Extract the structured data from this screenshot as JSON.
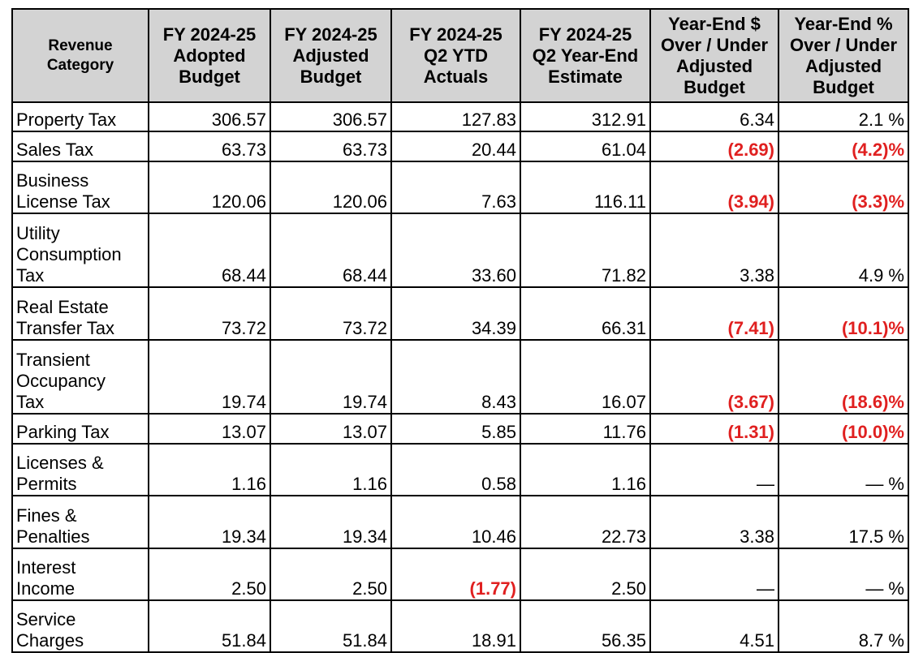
{
  "table": {
    "headers": [
      "Revenue\nCategory",
      "FY 2024-25\nAdopted\nBudget",
      "FY 2024-25\nAdjusted\nBudget",
      "FY 2024-25\nQ2 YTD\nActuals",
      "FY 2024-25\nQ2 Year-End\nEstimate",
      "Year-End $\nOver / Under\nAdjusted\nBudget",
      "Year-End %\nOver / Under\nAdjusted\nBudget"
    ],
    "rows": [
      [
        "Property Tax",
        "306.57",
        "306.57",
        "127.83",
        "312.91",
        "6.34",
        "2.1 %"
      ],
      [
        "Sales Tax",
        "63.73",
        "63.73",
        "20.44",
        "61.04",
        "(2.69)",
        "(4.2)%"
      ],
      [
        "Business\nLicense Tax",
        "120.06",
        "120.06",
        "7.63",
        "116.11",
        "(3.94)",
        "(3.3)%"
      ],
      [
        "Utility\nConsumption\nTax",
        "68.44",
        "68.44",
        "33.60",
        "71.82",
        "3.38",
        "4.9 %"
      ],
      [
        "Real Estate\nTransfer Tax",
        "73.72",
        "73.72",
        "34.39",
        "66.31",
        "(7.41)",
        "(10.1)%"
      ],
      [
        "Transient\nOccupancy\nTax",
        "19.74",
        "19.74",
        "8.43",
        "16.07",
        "(3.67)",
        "(18.6)%"
      ],
      [
        "Parking Tax",
        "13.07",
        "13.07",
        "5.85",
        "11.76",
        "(1.31)",
        "(10.0)%"
      ],
      [
        "Licenses &\nPermits",
        "1.16",
        "1.16",
        "0.58",
        "1.16",
        "—",
        "— %"
      ],
      [
        "Fines &\nPenalties",
        "19.34",
        "19.34",
        "10.46",
        "22.73",
        "3.38",
        "17.5 %"
      ],
      [
        "Interest\nIncome",
        "2.50",
        "2.50",
        "(1.77)",
        "2.50",
        "—",
        "— %"
      ],
      [
        "Service\nCharges",
        "51.84",
        "51.84",
        "18.91",
        "56.35",
        "4.51",
        "8.7 %"
      ]
    ]
  }
}
